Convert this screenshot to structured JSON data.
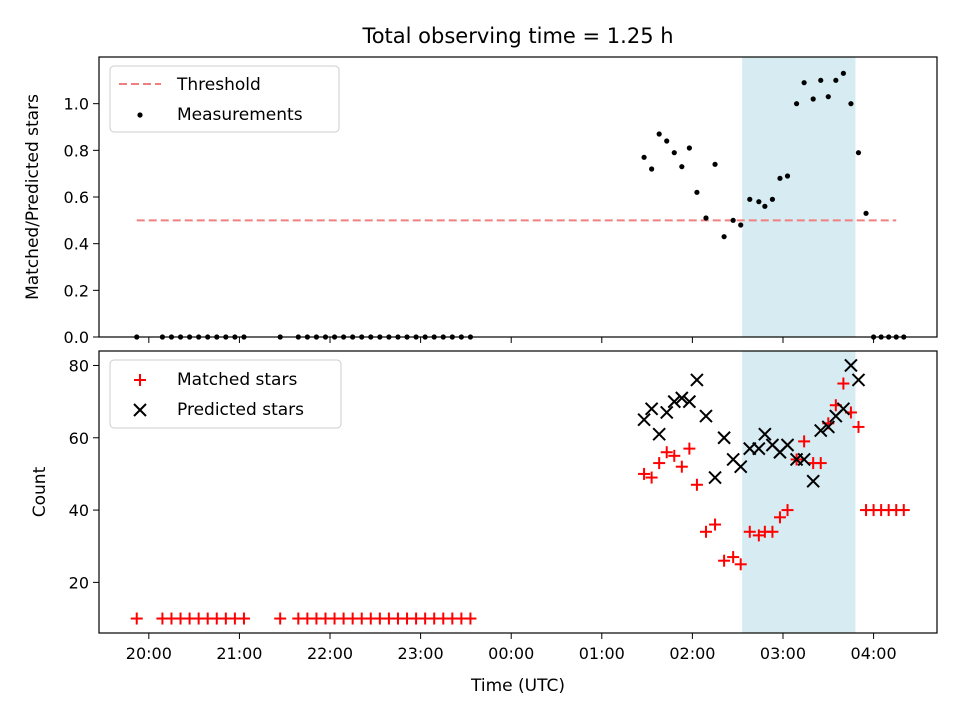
{
  "title": "Total observing time = 1.25 h",
  "x_ticks": [
    "20:00",
    "21:00",
    "22:00",
    "23:00",
    "00:00",
    "01:00",
    "02:00",
    "03:00",
    "04:00"
  ],
  "x_label": "Time (UTC)",
  "shade_span": [
    "02:33",
    "03:48"
  ],
  "colors": {
    "threshold": "#f08080",
    "measurements": "#000000",
    "matched": "#ff0000",
    "predicted": "#000000",
    "shade": "#add8e6"
  },
  "chart_data": [
    {
      "type": "scatter",
      "title": "Total observing time = 1.25 h",
      "xlabel": "",
      "ylabel": "Matched/Predicted stars",
      "xlim": [
        "19:27",
        "04:42"
      ],
      "ylim": [
        0,
        1.2
      ],
      "y_ticks": [
        "0.0",
        "0.2",
        "0.4",
        "0.6",
        "0.8",
        "1.0"
      ],
      "legend": "top-left",
      "threshold": {
        "name": "Threshold",
        "x": [
          "19:52",
          "04:15"
        ],
        "y": 0.5
      },
      "series": [
        {
          "name": "Measurements",
          "x": [
            "19:52",
            "20:09",
            "20:15",
            "20:21",
            "20:27",
            "20:33",
            "20:39",
            "20:45",
            "20:51",
            "20:57",
            "21:03",
            "21:27",
            "21:39",
            "21:45",
            "21:51",
            "21:57",
            "22:03",
            "22:09",
            "22:15",
            "22:21",
            "22:27",
            "22:33",
            "22:39",
            "22:45",
            "22:51",
            "22:57",
            "23:03",
            "23:09",
            "23:15",
            "23:21",
            "23:27",
            "23:33",
            "01:28",
            "01:33",
            "01:38",
            "01:43",
            "01:48",
            "01:53",
            "01:58",
            "02:03",
            "02:09",
            "02:15",
            "02:21",
            "02:27",
            "02:32",
            "02:38",
            "02:44",
            "02:48",
            "02:53",
            "02:58",
            "03:03",
            "03:09",
            "03:14",
            "03:20",
            "03:25",
            "03:30",
            "03:35",
            "03:40",
            "03:45",
            "03:50",
            "03:55",
            "04:00",
            "04:05",
            "04:10",
            "04:15",
            "04:20"
          ],
          "y": [
            0,
            0,
            0,
            0,
            0,
            0,
            0,
            0,
            0,
            0,
            0,
            0,
            0,
            0,
            0,
            0,
            0,
            0,
            0,
            0,
            0,
            0,
            0,
            0,
            0,
            0,
            0,
            0,
            0,
            0,
            0,
            0,
            0.77,
            0.72,
            0.87,
            0.84,
            0.79,
            0.73,
            0.81,
            0.62,
            0.51,
            0.74,
            0.43,
            0.5,
            0.48,
            0.59,
            0.58,
            0.56,
            0.59,
            0.68,
            0.69,
            1.0,
            1.09,
            1.02,
            1.1,
            1.03,
            1.1,
            1.13,
            1.0,
            0.79,
            0.53,
            0,
            0,
            0,
            0,
            0
          ]
        }
      ]
    },
    {
      "type": "scatter",
      "xlabel": "Time (UTC)",
      "ylabel": "Count",
      "xlim": [
        "19:27",
        "04:42"
      ],
      "ylim": [
        6,
        84
      ],
      "y_ticks": [
        "20",
        "40",
        "60",
        "80"
      ],
      "legend": "top-left",
      "series": [
        {
          "name": "Matched stars",
          "x": [
            "19:52",
            "20:09",
            "20:15",
            "20:21",
            "20:27",
            "20:33",
            "20:39",
            "20:45",
            "20:51",
            "20:57",
            "21:03",
            "21:27",
            "21:39",
            "21:45",
            "21:51",
            "21:57",
            "22:03",
            "22:09",
            "22:15",
            "22:21",
            "22:27",
            "22:33",
            "22:39",
            "22:45",
            "22:51",
            "22:57",
            "23:03",
            "23:09",
            "23:15",
            "23:21",
            "23:27",
            "23:33",
            "01:28",
            "01:33",
            "01:38",
            "01:43",
            "01:48",
            "01:53",
            "01:58",
            "02:03",
            "02:09",
            "02:15",
            "02:21",
            "02:27",
            "02:32",
            "02:38",
            "02:44",
            "02:48",
            "02:53",
            "02:58",
            "03:03",
            "03:09",
            "03:14",
            "03:20",
            "03:25",
            "03:30",
            "03:35",
            "03:40",
            "03:45",
            "03:50",
            "03:55",
            "04:00",
            "04:05",
            "04:10",
            "04:15",
            "04:20"
          ],
          "y": [
            10,
            10,
            10,
            10,
            10,
            10,
            10,
            10,
            10,
            10,
            10,
            10,
            10,
            10,
            10,
            10,
            10,
            10,
            10,
            10,
            10,
            10,
            10,
            10,
            10,
            10,
            10,
            10,
            10,
            10,
            10,
            10,
            50,
            49,
            53,
            56,
            55,
            52,
            57,
            47,
            34,
            36,
            26,
            27,
            25,
            34,
            33,
            34,
            34,
            38,
            40,
            54,
            59,
            53,
            53,
            64,
            69,
            75,
            67,
            63,
            40,
            40,
            40,
            40,
            40,
            40
          ]
        },
        {
          "name": "Predicted stars",
          "x": [
            "01:28",
            "01:33",
            "01:38",
            "01:43",
            "01:48",
            "01:53",
            "01:58",
            "02:03",
            "02:09",
            "02:15",
            "02:21",
            "02:27",
            "02:32",
            "02:38",
            "02:44",
            "02:48",
            "02:53",
            "02:58",
            "03:03",
            "03:09",
            "03:14",
            "03:20",
            "03:25",
            "03:30",
            "03:35",
            "03:40",
            "03:45",
            "03:50"
          ],
          "y": [
            65,
            68,
            61,
            67,
            70,
            71,
            70,
            76,
            66,
            49,
            60,
            54,
            52,
            57,
            57,
            61,
            58,
            56,
            58,
            54,
            54,
            48,
            62,
            63,
            66,
            68,
            80,
            76
          ]
        }
      ]
    }
  ]
}
